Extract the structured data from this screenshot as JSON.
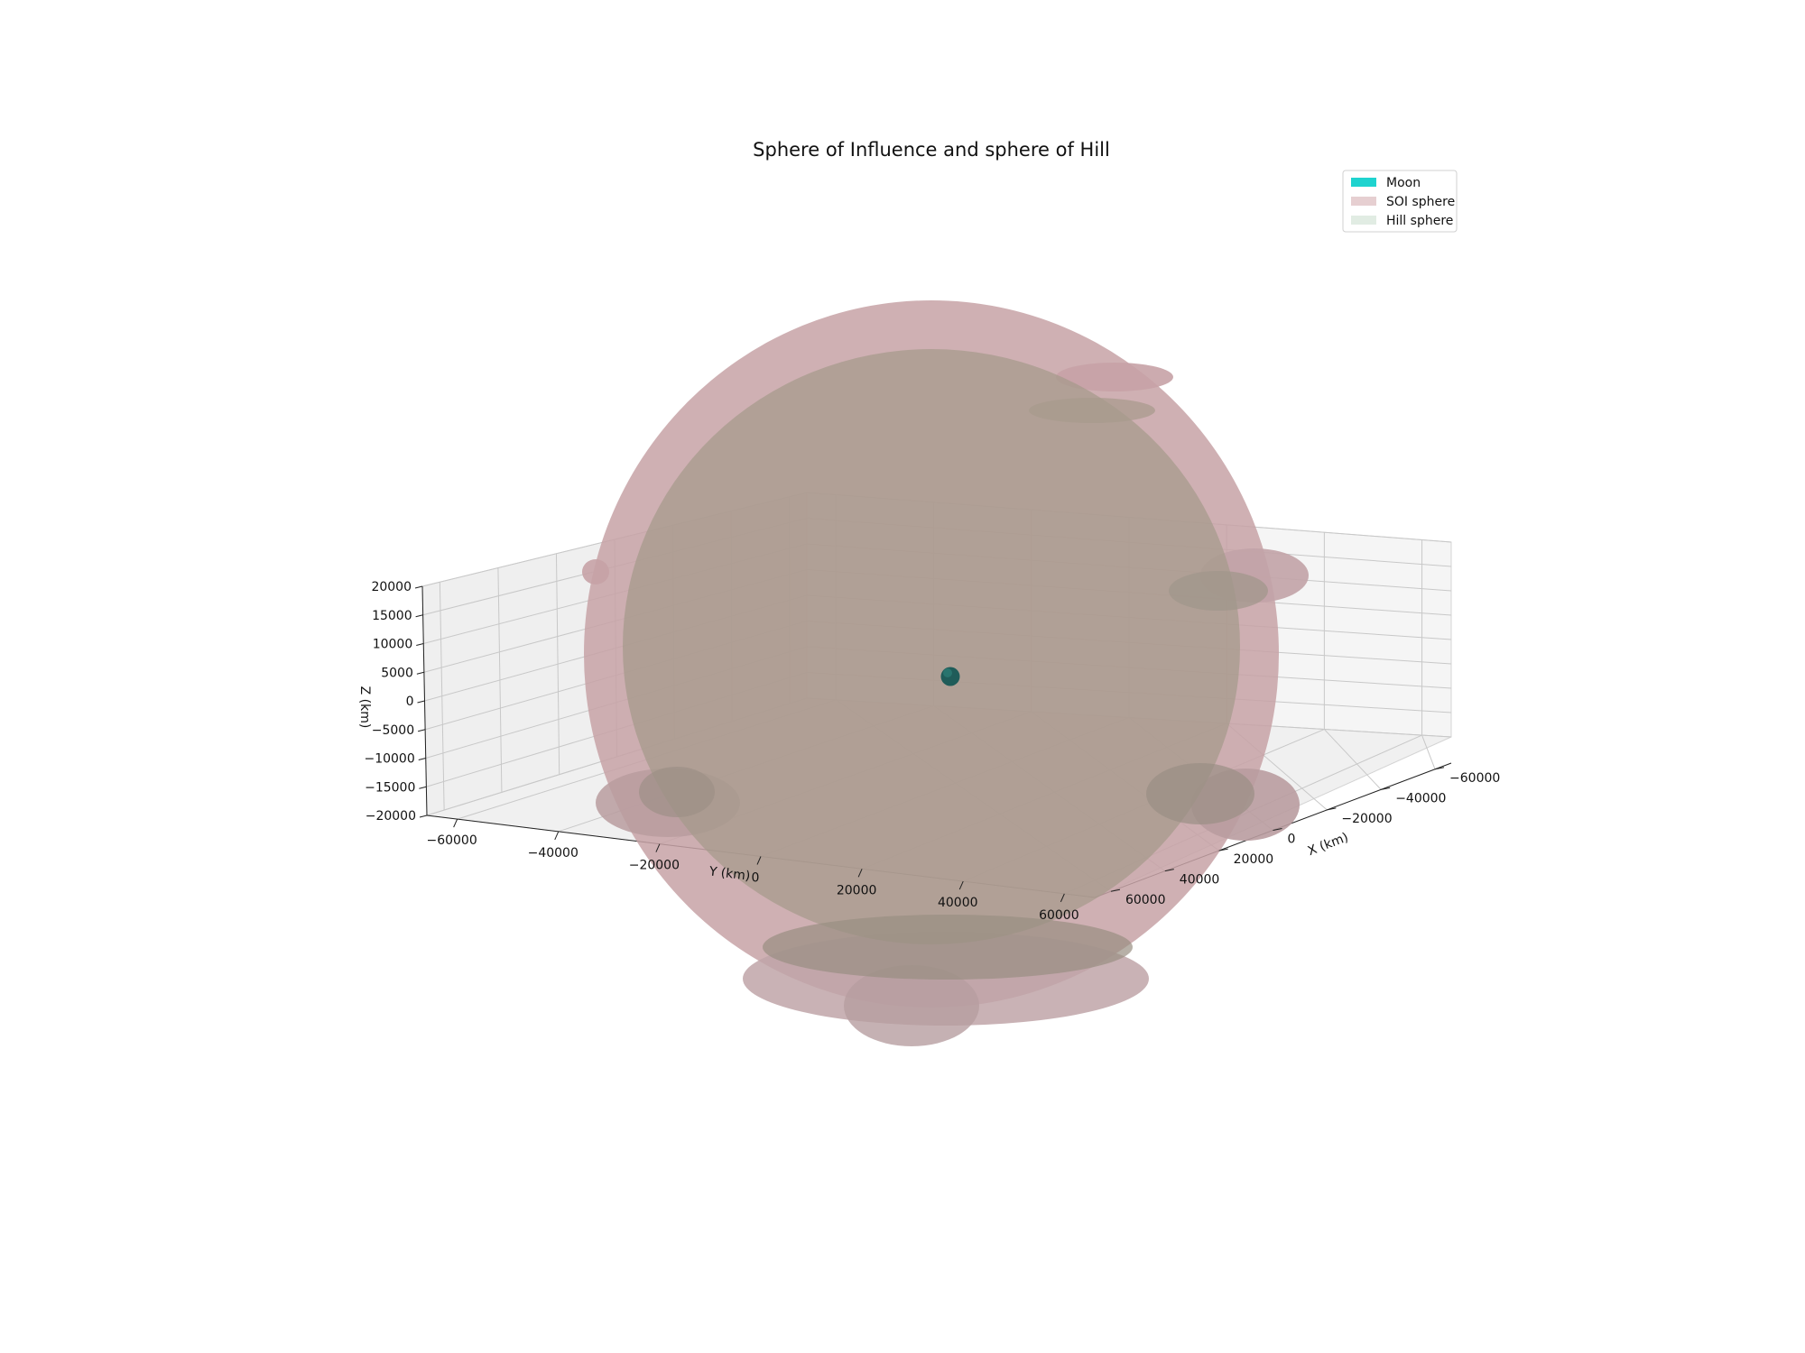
{
  "chart_data": {
    "type": "3d-surface",
    "title": "Sphere of Influence and sphere of Hill",
    "xlabel": "X (km)",
    "ylabel": "Y (km)",
    "zlabel": "Z (km)",
    "x_ticks": [
      -60000,
      -40000,
      -20000,
      0,
      20000,
      40000,
      60000
    ],
    "y_ticks": [
      -60000,
      -40000,
      -20000,
      0,
      20000,
      40000,
      60000
    ],
    "z_ticks": [
      -20000,
      -15000,
      -10000,
      -5000,
      0,
      5000,
      10000,
      15000,
      20000
    ],
    "tick_labels": {
      "x": [
        "−60000",
        "−40000",
        "−20000",
        "0",
        "20000",
        "40000",
        "60000"
      ],
      "y": [
        "−60000",
        "−40000",
        "−20000",
        "0",
        "20000",
        "40000",
        "60000"
      ],
      "z": [
        "−20000",
        "−15000",
        "−10000",
        "−5000",
        "0",
        "5000",
        "10000",
        "15000",
        "20000"
      ]
    },
    "series": [
      {
        "name": "Moon",
        "color": "#1fd3cf",
        "center": [
          0,
          0,
          0
        ]
      },
      {
        "name": "SOI sphere",
        "color": "#e6cfd1",
        "center": [
          0,
          0,
          0
        ]
      },
      {
        "name": "Hill sphere",
        "color": "#e1ece3",
        "center": [
          0,
          0,
          0
        ]
      }
    ],
    "legend_position": "top-right",
    "grid": true
  }
}
